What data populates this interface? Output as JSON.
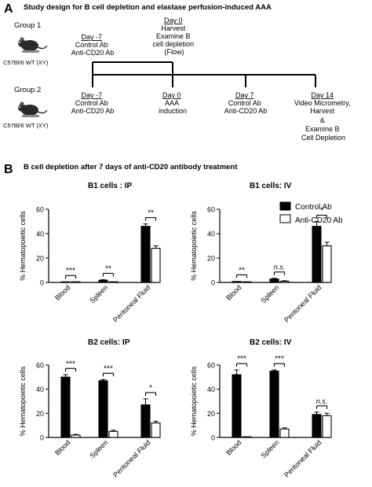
{
  "panel_a": {
    "letter": "A",
    "title": "Study design for B cell depletion and elastase perfusion-induced AAA",
    "group1": {
      "label": "Group 1",
      "strain": "C57Bl/6 WT (XY)"
    },
    "group2": {
      "label": "Group 2",
      "strain": "C57Bl/6 WT (XY)"
    },
    "timeline1": {
      "events": [
        {
          "lines": [
            "Day -7",
            "Control Ab",
            "Anti-CD20 Ab"
          ]
        },
        {
          "lines": [
            "Day 0",
            "Harvest",
            "Examine B",
            "cell depletion",
            "(Flow)"
          ]
        }
      ]
    },
    "timeline2": {
      "events": [
        {
          "lines": [
            "Day -7",
            "Control Ab",
            "Anti-CD20 Ab"
          ]
        },
        {
          "lines": [
            "Day 0",
            "AAA",
            "induction"
          ]
        },
        {
          "lines": [
            "Day 7",
            "Control Ab",
            "Anti-CD20 Ab"
          ]
        },
        {
          "lines": [
            "Day 14",
            "Video Micrometry,",
            "Harvest",
            "&",
            "Examine B",
            "Cell Depletion"
          ]
        }
      ]
    }
  },
  "panel_b": {
    "letter": "B",
    "title": "B cell depletion after 7 days of anti-CD20 antibody treatment",
    "legend": {
      "control": "Control Ab",
      "anti": "Anti-CD20 Ab"
    }
  },
  "colors": {
    "control": "#000000",
    "anti": "#ffffff",
    "stroke": "#000000"
  },
  "chart_data": [
    {
      "type": "bar",
      "title": "B1 cells : IP",
      "ylabel": "% Hematopoietic cells",
      "ylim": [
        0,
        60
      ],
      "yticks": [
        0,
        20,
        40,
        60
      ],
      "categories": [
        "Blood",
        "Spleen",
        "Peritoneal Fluid"
      ],
      "series": [
        {
          "name": "Control Ab",
          "values": [
            0.3,
            1.8,
            46
          ],
          "errors": [
            0.2,
            0.5,
            2
          ]
        },
        {
          "name": "Anti-CD20 Ab",
          "values": [
            0.05,
            0.2,
            28
          ],
          "errors": [
            0.05,
            0.1,
            2
          ]
        }
      ],
      "significance": [
        "***",
        "**",
        "**"
      ]
    },
    {
      "type": "bar",
      "title": "B1 cells: IV",
      "ylabel": "% Hematopoietic cells",
      "ylim": [
        0,
        60
      ],
      "yticks": [
        0,
        20,
        40,
        60
      ],
      "categories": [
        "Blood",
        "Spleen",
        "Peritoneal Fluid"
      ],
      "series": [
        {
          "name": "Control Ab",
          "values": [
            0.8,
            2.8,
            46
          ],
          "errors": [
            0.3,
            0.6,
            4
          ]
        },
        {
          "name": "Anti-CD20 Ab",
          "values": [
            0.1,
            1,
            30
          ],
          "errors": [
            0.05,
            0.4,
            3
          ]
        }
      ],
      "significance": [
        "**",
        "n.s.",
        "*"
      ]
    },
    {
      "type": "bar",
      "title": "B2 cells: IP",
      "ylabel": "% Hematopoietic cells",
      "ylim": [
        0,
        60
      ],
      "yticks": [
        0,
        20,
        40,
        60
      ],
      "categories": [
        "Blood",
        "Spleen",
        "Peritoneal Fluid"
      ],
      "series": [
        {
          "name": "Control Ab",
          "values": [
            50,
            47,
            27
          ],
          "errors": [
            2,
            1,
            5
          ]
        },
        {
          "name": "Anti-CD20 Ab",
          "values": [
            2,
            5,
            12
          ],
          "errors": [
            0.5,
            1,
            1.5
          ]
        }
      ],
      "significance": [
        "***",
        "***",
        "*"
      ]
    },
    {
      "type": "bar",
      "title": "B2 cells: IV",
      "ylabel": "% Hematopoietic cells",
      "ylim": [
        0,
        60
      ],
      "yticks": [
        0,
        20,
        40,
        60
      ],
      "categories": [
        "Blood",
        "Spleen",
        "Peritoneal Fluid"
      ],
      "series": [
        {
          "name": "Control Ab",
          "values": [
            52,
            55,
            19
          ],
          "errors": [
            4,
            1,
            2
          ]
        },
        {
          "name": "Anti-CD20 Ab",
          "values": [
            0.5,
            7,
            18
          ],
          "errors": [
            0.2,
            1,
            2
          ]
        }
      ],
      "significance": [
        "***",
        "***",
        "n.s."
      ]
    }
  ]
}
